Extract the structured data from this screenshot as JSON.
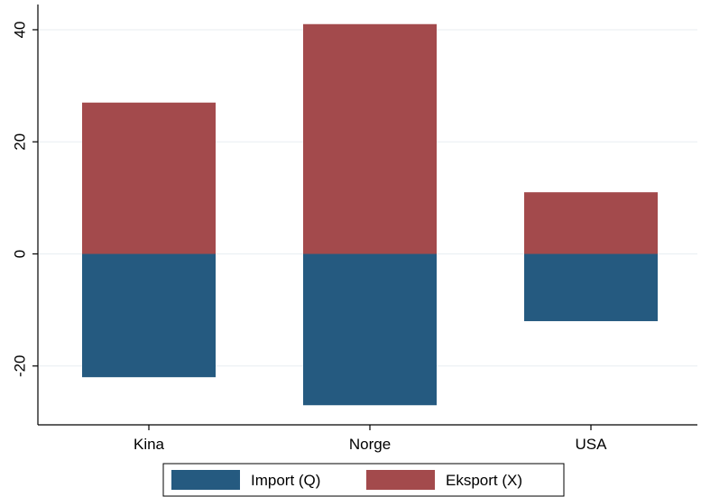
{
  "chart_data": {
    "type": "bar",
    "stacked": true,
    "categories": [
      "Kina",
      "Norge",
      "USA"
    ],
    "series": [
      {
        "name": "Import (Q)",
        "values": [
          -22,
          -27,
          -12
        ],
        "color": "#255a80"
      },
      {
        "name": "Eksport (X)",
        "values": [
          27,
          41,
          11
        ],
        "color": "#a34a4c"
      }
    ],
    "yticks": [
      -20,
      0,
      20,
      40
    ],
    "ytick_labels": [
      "-20",
      "0",
      "20",
      "40"
    ],
    "ylim": [
      -30.5,
      44.5
    ],
    "title": "",
    "xlabel": "",
    "ylabel": "",
    "grid": true,
    "legend_position": "bottom"
  }
}
